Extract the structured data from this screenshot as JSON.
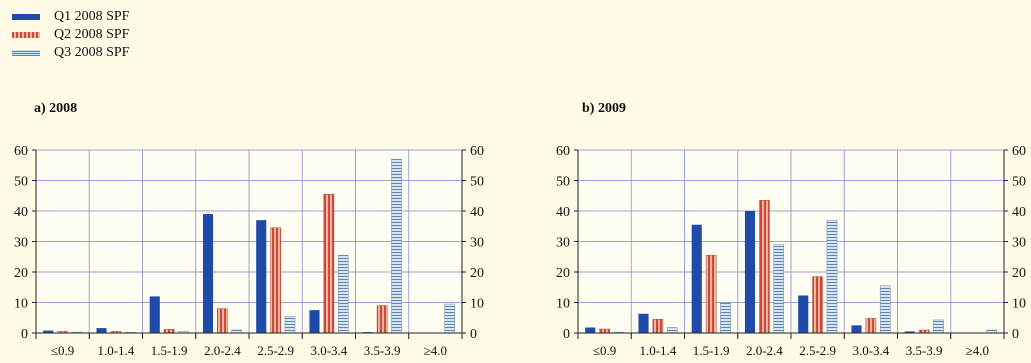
{
  "legend": [
    {
      "label": "Q1 2008 SPF",
      "style": "solid",
      "color": "#1f4aa8"
    },
    {
      "label": "Q2 2008 SPF",
      "style": "vertical-stripes",
      "color": "#c94a3e"
    },
    {
      "label": "Q3 2008 SPF",
      "style": "horizontal-stripes",
      "color": "#5f86b0"
    }
  ],
  "chart_data": [
    {
      "type": "bar",
      "title": "a) 2008",
      "categories": [
        "≤0.9",
        "1.0-1.4",
        "1.5-1.9",
        "2.0-2.4",
        "2.5-2.9",
        "3.0-3.4",
        "3.5-3.9",
        "≥4.0"
      ],
      "series": [
        {
          "name": "Q1 2008 SPF",
          "values": [
            0.8,
            1.6,
            12.0,
            39.0,
            37.0,
            7.5,
            0.3,
            0.0
          ]
        },
        {
          "name": "Q2 2008 SPF",
          "values": [
            0.5,
            0.5,
            1.2,
            8.0,
            34.5,
            45.5,
            9.0,
            0.0
          ]
        },
        {
          "name": "Q3 2008 SPF",
          "values": [
            0.3,
            0.2,
            0.5,
            1.0,
            5.5,
            25.5,
            57.0,
            9.5
          ]
        }
      ],
      "yticks": [
        "0",
        "10",
        "20",
        "30",
        "40",
        "50",
        "60"
      ],
      "ylim": [
        0,
        60
      ],
      "grid": true,
      "right_axis": true
    },
    {
      "type": "bar",
      "title": "b) 2009",
      "categories": [
        "≤0.9",
        "1.0-1.4",
        "1.5-1.9",
        "2.0-2.4",
        "2.5-2.9",
        "3.0-3.4",
        "3.5-3.9",
        "≥4.0"
      ],
      "series": [
        {
          "name": "Q1 2008 SPF",
          "values": [
            1.8,
            6.3,
            35.5,
            40.0,
            12.3,
            2.5,
            0.5,
            0.0
          ]
        },
        {
          "name": "Q2 2008 SPF",
          "values": [
            1.3,
            4.5,
            25.5,
            43.5,
            18.5,
            4.8,
            1.0,
            0.0
          ]
        },
        {
          "name": "Q3 2008 SPF",
          "values": [
            0.3,
            1.8,
            10.0,
            29.0,
            37.0,
            15.5,
            4.3,
            1.0
          ]
        }
      ],
      "yticks": [
        "0",
        "10",
        "20",
        "30",
        "40",
        "50",
        "60"
      ],
      "ylim": [
        0,
        60
      ],
      "grid": true,
      "right_axis": true
    }
  ]
}
